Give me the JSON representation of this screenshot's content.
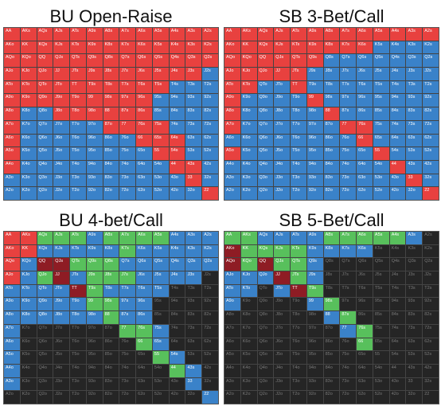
{
  "colors": {
    "raise": "#e8413f",
    "call": "#3a82c9",
    "fold": "#252525",
    "four_bet": "#58c05c",
    "dark_red": "#8e1c24"
  },
  "hand_labels": [
    [
      "AA",
      "AKs",
      "AQs",
      "AJs",
      "ATs",
      "A9s",
      "A8s",
      "A7s",
      "A6s",
      "A5s",
      "A4s",
      "A3s",
      "A2s"
    ],
    [
      "AKo",
      "KK",
      "KQs",
      "KJs",
      "KTs",
      "K9s",
      "K8s",
      "K7s",
      "K6s",
      "K5s",
      "K4s",
      "K3s",
      "K2s"
    ],
    [
      "AQo",
      "KQo",
      "QQ",
      "QJs",
      "QTs",
      "Q9s",
      "Q8s",
      "Q7s",
      "Q6s",
      "Q5s",
      "Q4s",
      "Q3s",
      "Q2s"
    ],
    [
      "AJo",
      "KJo",
      "QJo",
      "JJ",
      "JTs",
      "J9s",
      "J8s",
      "J7s",
      "J6s",
      "J5s",
      "J4s",
      "J3s",
      "J2s"
    ],
    [
      "ATo",
      "KTo",
      "QTo",
      "JTo",
      "TT",
      "T9s",
      "T8s",
      "T7s",
      "T6s",
      "T5s",
      "T4s",
      "T3s",
      "T2s"
    ],
    [
      "A9o",
      "K9o",
      "Q9o",
      "J9o",
      "T9o",
      "99",
      "98s",
      "97s",
      "96s",
      "95s",
      "94s",
      "93s",
      "92s"
    ],
    [
      "A8o",
      "K8o",
      "Q8o",
      "J8o",
      "T8o",
      "98o",
      "88",
      "87s",
      "86s",
      "85s",
      "84s",
      "83s",
      "82s"
    ],
    [
      "A7o",
      "K7o",
      "Q7o",
      "J7o",
      "T7o",
      "97o",
      "87o",
      "77",
      "76s",
      "75s",
      "74s",
      "73s",
      "72s"
    ],
    [
      "A6o",
      "K6o",
      "Q6o",
      "J6o",
      "T6o",
      "96o",
      "86o",
      "76o",
      "66",
      "65s",
      "64s",
      "63s",
      "62s"
    ],
    [
      "A5o",
      "K5o",
      "Q5o",
      "J5o",
      "T5o",
      "95o",
      "85o",
      "75o",
      "65o",
      "55",
      "54s",
      "53s",
      "52s"
    ],
    [
      "A4o",
      "K4o",
      "Q4o",
      "J4o",
      "T4o",
      "94o",
      "84o",
      "74o",
      "64o",
      "54o",
      "44",
      "43s",
      "42s"
    ],
    [
      "A3o",
      "K3o",
      "Q3o",
      "J3o",
      "T3o",
      "93o",
      "83o",
      "73o",
      "63o",
      "53o",
      "43o",
      "33",
      "32s"
    ],
    [
      "A2o",
      "K2o",
      "Q2o",
      "J2o",
      "T2o",
      "92o",
      "82o",
      "72o",
      "62o",
      "52o",
      "42o",
      "32o",
      "22"
    ]
  ],
  "panels": [
    {
      "title": "BU Open-Raise",
      "rows": [
        "RRRRRRRRRRRRR",
        "RRRRRRRRRRRRR",
        "RRRRRRRRRRRRR",
        "RRRRRRRRRRRRC",
        "RRRRRRRRRRCCC",
        "RRRRRRRRRCCCC",
        "RCCRRRRRRCCCC",
        "RCCCCCRRRRCCC",
        "RCCCCCCCRRRCC",
        "RCCCCCCCCRRCC",
        "RCCCCCCCCCRRC",
        "CCCCCCCCCCCRC",
        "CCCCCCCCCCCCR"
      ]
    },
    {
      "title": "SB 3-Bet/Call",
      "rows": [
        "RRRRRRRRRRRRR",
        "RRRRRRRRRCCCC",
        "RRRRRRCCCCCCC",
        "RRRRRCCCCCCCC",
        "RRCCRCCCCCCCC",
        "RCCCCRCCCCCCC",
        "RCCCCCRCCCCCC",
        "RCCCCCCRRCCCC",
        "CCCCCCCCRCCCC",
        "RCCCCCCCCRCCC",
        "CCCCCCCCCCRCC",
        "CCCCCCCCCCCRC",
        "CCCCCCCCCCCCR"
      ]
    },
    {
      "title": "BU 4-bet/Call",
      "rows": [
        "RRGGGCGGGGCCC",
        "RRCCCCCGCCCCC",
        "RCDDGGGCCCCCC",
        "RCGDCGGGCCCCF",
        "CCCCDGCCCCFFF",
        "CCCCCGGCCFFFF",
        "CCCCCCGCCFFFF",
        "CFFFFFFGGCFFF",
        "CFFFFFFFGCFFF",
        "CFFFFFFFFGCFF",
        "CFFFFFFFFFGCF",
        "CFFFFFFFFFFCF",
        "FFFFFFFFFFFFC"
      ]
    },
    {
      "title": "SB 5-Bet/Call",
      "rows": [
        "GGCCCCGGGGGCF",
        "DGGGGCCCCFFFF",
        "DGDGGCFFFFFFF",
        "CCCDGCFFFFFFF",
        "CCFCDGFFFFFFF",
        "CFFFFCGFFFFFF",
        "FFFFFFCGFFFFF",
        "FFFFFFFCGFFFF",
        "FFFFFFFFGFFFF",
        "FFFFFFFFFFFFF",
        "FFFFFFFFFFFFF",
        "FFFFFFFFFFFFF",
        "FFFFFFFFFFFFF"
      ]
    }
  ]
}
